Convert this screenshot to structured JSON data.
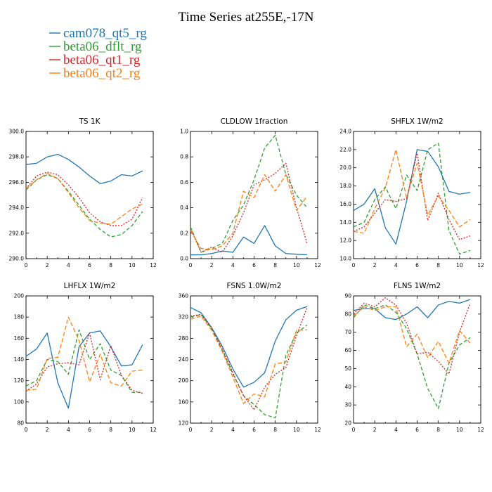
{
  "title": "Time Series at255E,-17N",
  "legend": [
    {
      "name": "cam078_qt5_rg",
      "color": "#1f77b4",
      "dash": ""
    },
    {
      "name": "beta06_dflt_rg",
      "color": "#2ca02c",
      "dash": "5,3"
    },
    {
      "name": "beta06_qt1_rg",
      "color": "#d62728",
      "dash": "2,2"
    },
    {
      "name": "beta06_qt2_rg",
      "color": "#ff7f0e",
      "dash": "6,3"
    }
  ],
  "chart_data": [
    {
      "type": "line",
      "title": "TS   1K",
      "x": [
        0,
        1,
        2,
        3,
        4,
        5,
        6,
        7,
        8,
        9,
        10,
        11
      ],
      "xlim": [
        0,
        12
      ],
      "xticks": [
        0,
        2,
        4,
        6,
        8,
        10,
        12
      ],
      "ylim": [
        290,
        300
      ],
      "yticks": [
        290,
        292,
        294,
        296,
        298,
        300
      ],
      "ytick_labels": [
        "290.0",
        "292.0",
        "294.0",
        "296.0",
        "298.0",
        "300.0"
      ],
      "series": [
        {
          "name": "cam078_qt5_rg",
          "values": [
            297.4,
            297.5,
            298.0,
            298.2,
            297.8,
            297.2,
            296.5,
            295.9,
            296.1,
            296.6,
            296.5,
            296.9
          ]
        },
        {
          "name": "beta06_dflt_rg",
          "values": [
            295.4,
            296.2,
            296.6,
            296.3,
            295.3,
            294.2,
            293.1,
            292.3,
            291.7,
            291.9,
            292.6,
            293.7
          ]
        },
        {
          "name": "beta06_qt1_rg",
          "values": [
            295.5,
            296.5,
            296.8,
            296.6,
            295.8,
            294.8,
            293.6,
            292.9,
            292.6,
            292.6,
            293.1,
            294.8
          ]
        },
        {
          "name": "beta06_qt2_rg",
          "values": [
            295.5,
            296.2,
            296.7,
            296.3,
            295.2,
            294.0,
            293.0,
            292.8,
            292.7,
            293.3,
            293.9,
            294.3
          ]
        }
      ]
    },
    {
      "type": "line",
      "title": "CLDLOW   1fraction",
      "x": [
        0,
        1,
        2,
        3,
        4,
        5,
        6,
        7,
        8,
        9,
        10,
        11
      ],
      "xlim": [
        0,
        12
      ],
      "xticks": [
        0,
        2,
        4,
        6,
        8,
        10,
        12
      ],
      "ylim": [
        0,
        1
      ],
      "yticks": [
        0,
        0.2,
        0.4,
        0.6,
        0.8,
        1.0
      ],
      "ytick_labels": [
        "0.0",
        "0.2",
        "0.4",
        "0.6",
        "0.8",
        "1.0"
      ],
      "series": [
        {
          "name": "cam078_qt5_rg",
          "values": [
            0.03,
            0.03,
            0.04,
            0.06,
            0.05,
            0.17,
            0.12,
            0.26,
            0.1,
            0.04,
            0.035,
            0.03
          ]
        },
        {
          "name": "beta06_dflt_rg",
          "values": [
            0.25,
            0.05,
            0.08,
            0.12,
            0.3,
            0.42,
            0.62,
            0.87,
            0.97,
            0.66,
            0.5,
            0.4
          ]
        },
        {
          "name": "beta06_qt1_rg",
          "values": [
            0.24,
            0.05,
            0.09,
            0.05,
            0.18,
            0.36,
            0.58,
            0.62,
            0.67,
            0.75,
            0.4,
            0.12
          ]
        },
        {
          "name": "beta06_qt2_rg",
          "values": [
            0.22,
            0.08,
            0.07,
            0.1,
            0.2,
            0.53,
            0.48,
            0.66,
            0.53,
            0.66,
            0.38,
            0.49
          ]
        }
      ]
    },
    {
      "type": "line",
      "title": "SHFLX   1W/m2",
      "x": [
        0,
        1,
        2,
        3,
        4,
        5,
        6,
        7,
        8,
        9,
        10,
        11
      ],
      "xlim": [
        0,
        12
      ],
      "xticks": [
        0,
        2,
        4,
        6,
        8,
        10,
        12
      ],
      "ylim": [
        10,
        24
      ],
      "yticks": [
        10,
        12,
        14,
        16,
        18,
        20,
        22,
        24
      ],
      "ytick_labels": [
        "10.0",
        "12.0",
        "14.0",
        "16.0",
        "18.0",
        "20.0",
        "22.0",
        "24.0"
      ],
      "series": [
        {
          "name": "cam078_qt5_rg",
          "values": [
            15.3,
            16.0,
            17.7,
            13.4,
            11.6,
            16.3,
            22.0,
            21.8,
            20.1,
            17.4,
            17.1,
            17.3
          ]
        },
        {
          "name": "beta06_dflt_rg",
          "values": [
            13.5,
            14.0,
            16.5,
            17.9,
            15.5,
            19.2,
            17.5,
            22.0,
            22.7,
            13.1,
            10.5,
            10.9
          ]
        },
        {
          "name": "beta06_qt1_rg",
          "values": [
            13.0,
            13.5,
            15.0,
            16.5,
            16.3,
            16.6,
            21.6,
            14.2,
            17.2,
            14.3,
            12.1,
            12.5
          ]
        },
        {
          "name": "beta06_qt2_rg",
          "values": [
            13.0,
            12.8,
            15.5,
            17.8,
            22.0,
            16.7,
            20.5,
            14.8,
            16.9,
            15.3,
            13.5,
            14.3
          ]
        }
      ]
    },
    {
      "type": "line",
      "title": "LHFLX   1W/m2",
      "x": [
        0,
        1,
        2,
        3,
        4,
        5,
        6,
        7,
        8,
        9,
        10,
        11
      ],
      "xlim": [
        0,
        12
      ],
      "xticks": [
        0,
        2,
        4,
        6,
        8,
        10,
        12
      ],
      "ylim": [
        80,
        200
      ],
      "yticks": [
        80,
        100,
        120,
        140,
        160,
        180,
        200
      ],
      "ytick_labels": [
        "80",
        "100",
        "120",
        "140",
        "160",
        "180",
        "200"
      ],
      "series": [
        {
          "name": "cam078_qt5_rg",
          "values": [
            143,
            150,
            165,
            118,
            94,
            152,
            165,
            167,
            152,
            134,
            135,
            154
          ]
        },
        {
          "name": "beta06_dflt_rg",
          "values": [
            115,
            120,
            140,
            138,
            126,
            168,
            140,
            155,
            130,
            125,
            109,
            109
          ]
        },
        {
          "name": "beta06_qt1_rg",
          "values": [
            110,
            117,
            133,
            136,
            137,
            135,
            165,
            121,
            153,
            125,
            111,
            108
          ]
        },
        {
          "name": "beta06_qt2_rg",
          "values": [
            111,
            112,
            141,
            142,
            180,
            158,
            119,
            145,
            118,
            115,
            129,
            130
          ]
        }
      ]
    },
    {
      "type": "line",
      "title": "FSNS   1.0W/m2",
      "x": [
        0,
        1,
        2,
        3,
        4,
        5,
        6,
        7,
        8,
        9,
        10,
        11
      ],
      "xlim": [
        0,
        12
      ],
      "xticks": [
        0,
        2,
        4,
        6,
        8,
        10,
        12
      ],
      "ylim": [
        120,
        360
      ],
      "yticks": [
        120,
        160,
        200,
        240,
        280,
        320,
        360
      ],
      "ytick_labels": [
        "120",
        "160",
        "200",
        "240",
        "280",
        "320",
        "360"
      ],
      "series": [
        {
          "name": "cam078_qt5_rg",
          "values": [
            338,
            328,
            300,
            265,
            222,
            188,
            197,
            215,
            275,
            315,
            333,
            340
          ]
        },
        {
          "name": "beta06_dflt_rg",
          "values": [
            320,
            325,
            298,
            258,
            213,
            172,
            155,
            136,
            130,
            248,
            290,
            305
          ]
        },
        {
          "name": "beta06_qt1_rg",
          "values": [
            322,
            325,
            300,
            260,
            215,
            172,
            145,
            188,
            212,
            225,
            285,
            338
          ]
        },
        {
          "name": "beta06_qt2_rg",
          "values": [
            316,
            322,
            295,
            255,
            207,
            157,
            175,
            170,
            232,
            235,
            295,
            296
          ]
        }
      ]
    },
    {
      "type": "line",
      "title": "FLNS   1W/m2",
      "x": [
        0,
        1,
        2,
        3,
        4,
        5,
        6,
        7,
        8,
        9,
        10,
        11
      ],
      "xlim": [
        0,
        12
      ],
      "xticks": [
        0,
        2,
        4,
        6,
        8,
        10,
        12
      ],
      "ylim": [
        20,
        90
      ],
      "yticks": [
        20,
        30,
        40,
        50,
        60,
        70,
        80,
        90
      ],
      "ytick_labels": [
        "20",
        "30",
        "40",
        "50",
        "60",
        "70",
        "80",
        "90"
      ],
      "series": [
        {
          "name": "cam078_qt5_rg",
          "values": [
            82,
            83,
            83,
            78,
            77,
            80,
            84,
            78,
            85,
            87,
            86,
            88
          ]
        },
        {
          "name": "beta06_dflt_rg",
          "values": [
            78,
            85,
            83,
            85,
            81,
            72,
            58,
            39,
            28,
            53,
            63,
            67
          ]
        },
        {
          "name": "beta06_qt1_rg",
          "values": [
            80,
            86,
            84,
            89,
            85,
            75,
            58,
            59,
            54,
            47,
            70,
            86
          ]
        },
        {
          "name": "beta06_qt2_rg",
          "values": [
            79,
            84,
            82,
            84,
            84,
            62,
            69,
            56,
            65,
            53,
            71,
            64
          ]
        }
      ]
    }
  ]
}
